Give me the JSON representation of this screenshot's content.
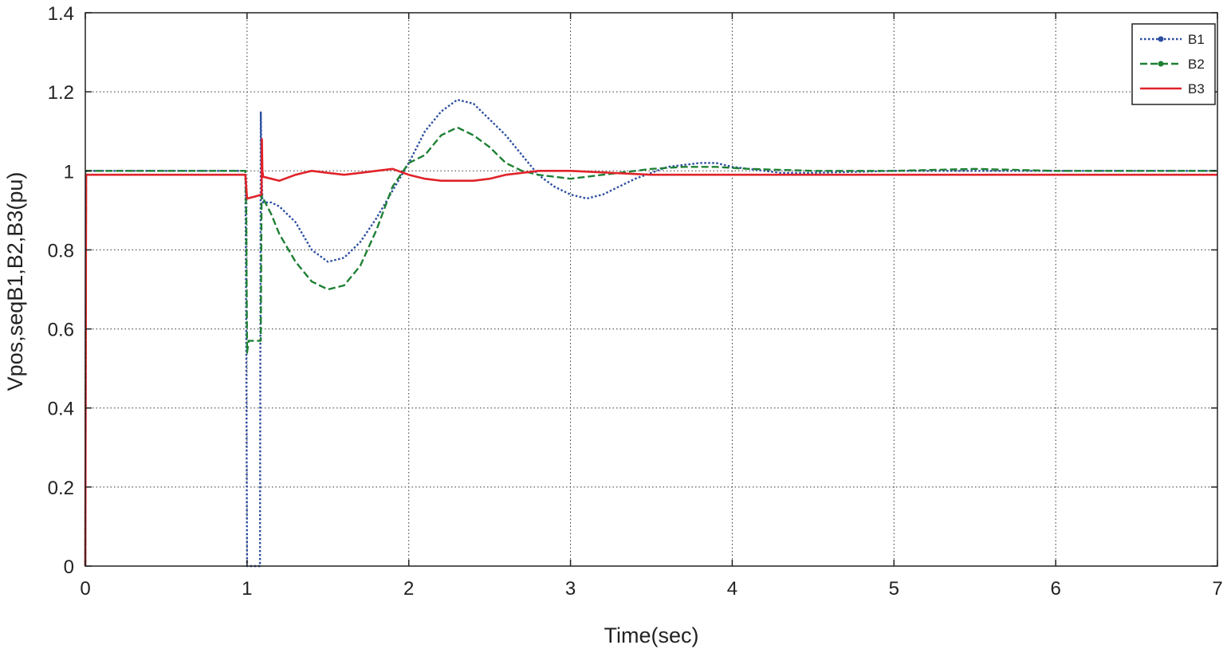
{
  "chart_data": {
    "type": "line",
    "title": "",
    "xlabel": "Time(sec)",
    "ylabel": "Vpos,seqB1,B2,B3(pu)",
    "xlim": [
      0,
      7
    ],
    "ylim": [
      0,
      1.4
    ],
    "xticks": [
      0,
      1,
      2,
      3,
      4,
      5,
      6,
      7
    ],
    "yticks": [
      0,
      0.2,
      0.4,
      0.6,
      0.8,
      1,
      1.2,
      1.4
    ],
    "xtick_labels": [
      "0",
      "1",
      "2",
      "3",
      "4",
      "5",
      "6",
      "7"
    ],
    "ytick_labels": [
      "0",
      "0.2",
      "0.4",
      "0.6",
      "0.8",
      "1",
      "1.2",
      "1.4"
    ],
    "grid": true,
    "legend_position": "top-right",
    "series": [
      {
        "name": "B1",
        "color": "#2b4da0",
        "style": "dotted",
        "x": [
          0,
          0.005,
          0.99,
          0.995,
          1.0,
          1.08,
          1.085,
          1.09,
          1.095,
          1.1,
          1.15,
          1.2,
          1.3,
          1.4,
          1.5,
          1.6,
          1.7,
          1.8,
          1.9,
          2.0,
          2.1,
          2.2,
          2.3,
          2.4,
          2.5,
          2.6,
          2.7,
          2.8,
          2.9,
          3.0,
          3.1,
          3.2,
          3.3,
          3.4,
          3.5,
          3.6,
          3.7,
          3.8,
          3.9,
          4.0,
          4.1,
          4.3,
          4.5,
          5.0,
          5.5,
          6.0,
          7.0
        ],
        "values": [
          0,
          1.0,
          1.0,
          0.6,
          0.0,
          0.0,
          1.15,
          1.0,
          0.93,
          0.92,
          0.92,
          0.91,
          0.87,
          0.8,
          0.77,
          0.78,
          0.82,
          0.88,
          0.95,
          1.02,
          1.1,
          1.15,
          1.18,
          1.17,
          1.13,
          1.09,
          1.04,
          0.99,
          0.96,
          0.94,
          0.93,
          0.94,
          0.96,
          0.98,
          0.995,
          1.01,
          1.015,
          1.02,
          1.02,
          1.01,
          1.005,
          0.995,
          0.995,
          1.0,
          1.0,
          1.0,
          1.0
        ]
      },
      {
        "name": "B2",
        "color": "#1e8034",
        "style": "dashed",
        "x": [
          0,
          0.005,
          0.99,
          0.995,
          1.0,
          1.01,
          1.085,
          1.09,
          1.1,
          1.15,
          1.2,
          1.3,
          1.4,
          1.5,
          1.6,
          1.7,
          1.8,
          1.9,
          2.0,
          2.1,
          2.2,
          2.3,
          2.4,
          2.5,
          2.6,
          2.7,
          2.8,
          2.9,
          3.0,
          3.1,
          3.2,
          3.3,
          3.4,
          3.5,
          3.7,
          3.9,
          4.1,
          4.5,
          5.0,
          5.5,
          6.0,
          7.0
        ],
        "values": [
          0,
          1.0,
          1.0,
          0.9,
          0.54,
          0.57,
          0.57,
          0.94,
          0.93,
          0.89,
          0.84,
          0.77,
          0.72,
          0.7,
          0.71,
          0.76,
          0.85,
          0.96,
          1.02,
          1.04,
          1.09,
          1.11,
          1.09,
          1.06,
          1.02,
          1.0,
          0.99,
          0.985,
          0.98,
          0.985,
          0.99,
          0.995,
          1.0,
          1.005,
          1.01,
          1.01,
          1.005,
          1.0,
          1.0,
          1.005,
          1.0,
          1.0
        ]
      },
      {
        "name": "B3",
        "color": "#e0232a",
        "style": "solid",
        "x": [
          0,
          0.005,
          0.99,
          1.0,
          1.05,
          1.09,
          1.092,
          1.095,
          1.1,
          1.15,
          1.2,
          1.3,
          1.4,
          1.5,
          1.6,
          1.7,
          1.8,
          1.9,
          2.0,
          2.1,
          2.2,
          2.3,
          2.4,
          2.5,
          2.6,
          2.7,
          2.8,
          2.9,
          3.0,
          3.5,
          4.0,
          5.0,
          6.0,
          7.0
        ],
        "values": [
          0,
          0.99,
          0.99,
          0.93,
          0.935,
          0.94,
          1.08,
          1.0,
          0.985,
          0.98,
          0.975,
          0.99,
          1.0,
          0.995,
          0.99,
          0.995,
          1.0,
          1.005,
          0.99,
          0.98,
          0.975,
          0.975,
          0.975,
          0.98,
          0.99,
          0.995,
          1.0,
          1.0,
          1.0,
          0.99,
          0.99,
          0.99,
          0.99,
          0.99
        ]
      }
    ]
  }
}
